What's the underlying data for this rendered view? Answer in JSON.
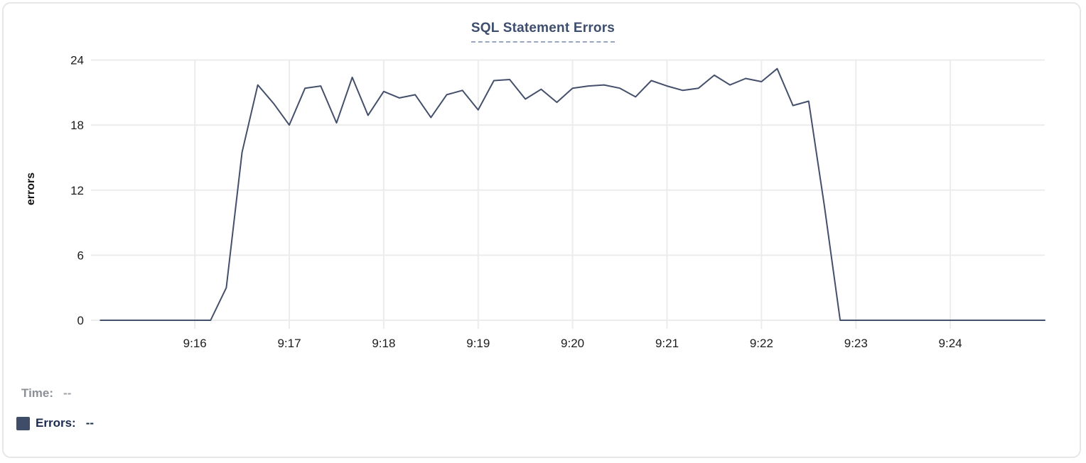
{
  "header": {
    "title": "SQL Statement Errors"
  },
  "chart_data": {
    "type": "line",
    "title": "SQL Statement Errors",
    "xlabel": "",
    "ylabel": "errors",
    "ylim": [
      0,
      24
    ],
    "y_ticks": [
      0,
      6,
      12,
      18,
      24
    ],
    "x_tick_labels": [
      "9:16",
      "9:17",
      "9:18",
      "9:19",
      "9:20",
      "9:21",
      "9:22",
      "9:23",
      "9:24"
    ],
    "x_domain": [
      "9:14:54",
      "9:25:00"
    ],
    "grid": true,
    "legend_position": "bottom-left",
    "series": [
      {
        "name": "Errors",
        "color": "#44506b",
        "x": [
          "9:15:00",
          "9:15:10",
          "9:15:20",
          "9:15:30",
          "9:15:40",
          "9:15:50",
          "9:16:00",
          "9:16:10",
          "9:16:20",
          "9:16:30",
          "9:16:40",
          "9:16:50",
          "9:17:00",
          "9:17:10",
          "9:17:20",
          "9:17:30",
          "9:17:40",
          "9:17:50",
          "9:18:00",
          "9:18:10",
          "9:18:20",
          "9:18:30",
          "9:18:40",
          "9:18:50",
          "9:19:00",
          "9:19:10",
          "9:19:20",
          "9:19:30",
          "9:19:40",
          "9:19:50",
          "9:20:00",
          "9:20:10",
          "9:20:20",
          "9:20:30",
          "9:20:40",
          "9:20:50",
          "9:21:00",
          "9:21:10",
          "9:21:20",
          "9:21:30",
          "9:21:40",
          "9:21:50",
          "9:22:00",
          "9:22:10",
          "9:22:20",
          "9:22:30",
          "9:22:40",
          "9:22:50",
          "9:23:00",
          "9:23:10",
          "9:23:20",
          "9:23:30",
          "9:23:40",
          "9:23:50",
          "9:24:00",
          "9:24:10",
          "9:24:20",
          "9:24:30",
          "9:24:40",
          "9:24:50",
          "9:25:00"
        ],
        "values": [
          0,
          0,
          0,
          0,
          0,
          0,
          0,
          0,
          3,
          15.5,
          21.7,
          20,
          18,
          21.4,
          21.6,
          18.2,
          22.4,
          18.9,
          21.1,
          20.5,
          20.8,
          18.7,
          20.8,
          21.2,
          19.4,
          22.1,
          22.2,
          20.4,
          21.3,
          20.1,
          21.4,
          21.6,
          21.7,
          21.4,
          20.6,
          22.1,
          21.6,
          21.2,
          21.4,
          22.6,
          21.7,
          22.3,
          22,
          23.2,
          19.8,
          20.2,
          10.5,
          0,
          0,
          0,
          0,
          0,
          0,
          0,
          0,
          0,
          0,
          0,
          0,
          0,
          0
        ]
      }
    ],
    "colors": {
      "line": "#44506b",
      "grid": "#ececec",
      "axis_text": "#1c1c1c",
      "title": "#3d4e6e",
      "title_underline": "#9aa6c0"
    }
  },
  "footer": {
    "time_label": "Time:",
    "time_value": "--",
    "errors_label": "Errors:",
    "errors_value": "--",
    "errors_swatch_color": "#3f4d69"
  }
}
